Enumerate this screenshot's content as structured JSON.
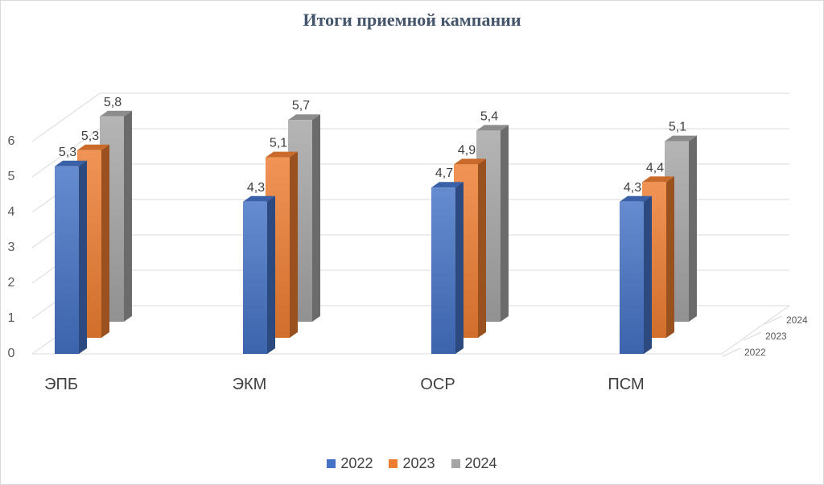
{
  "chart_data": {
    "type": "bar",
    "title": "Итоги приемной кампании",
    "categories": [
      "ЭПБ",
      "ЭКМ",
      "ОСР",
      "ПСМ"
    ],
    "series": [
      {
        "name": "2022",
        "values": [
          5.3,
          4.3,
          4.7,
          4.3
        ],
        "color": "#4472c4",
        "label_texts": [
          "5,3",
          "4,3",
          "4,7",
          "4,3"
        ]
      },
      {
        "name": "2023",
        "values": [
          5.3,
          5.1,
          4.9,
          4.4
        ],
        "color": "#ed7d31",
        "label_texts": [
          "5,3",
          "5,1",
          "4,9",
          "4,4"
        ]
      },
      {
        "name": "2024",
        "values": [
          5.8,
          5.7,
          5.4,
          5.1
        ],
        "color": "#a5a5a5",
        "label_texts": [
          "5,8",
          "5,7",
          "5,4",
          "5,1"
        ]
      }
    ],
    "ylim": [
      0,
      6
    ],
    "y_ticks": [
      "0",
      "1",
      "2",
      "3",
      "4",
      "5",
      "6"
    ],
    "depth_axis_labels": [
      "2022",
      "2023",
      "2024"
    ],
    "grid": true,
    "legend_position": "bottom",
    "chart_style": "3d-column"
  }
}
